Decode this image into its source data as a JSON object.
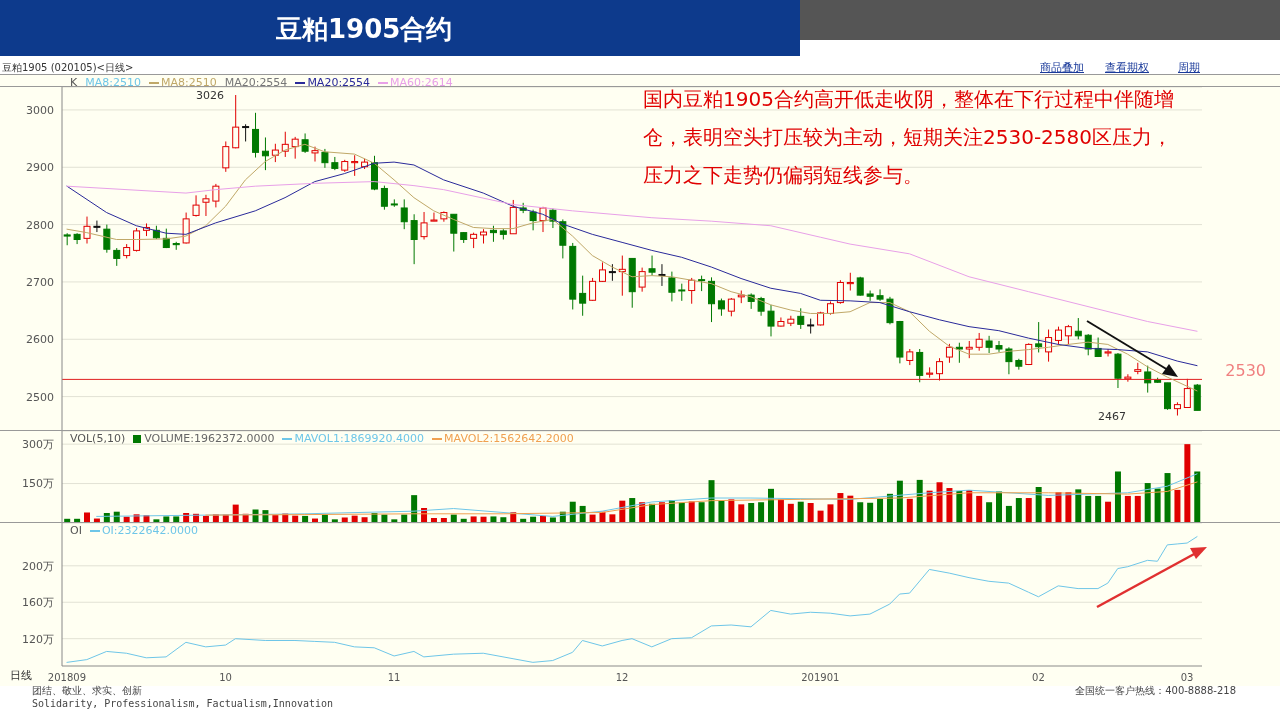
{
  "chart_data": [
    {
      "type": "candlestick",
      "title": "豆粕1905合约",
      "subtitle": "豆粕1905 (020105)<日线>",
      "legend": "top left",
      "legend_title": "K",
      "grid": "y",
      "tick_labels": "y",
      "categories": [
        "201809",
        null,
        null,
        null,
        null,
        null,
        null,
        null,
        null,
        null,
        null,
        null,
        null,
        null,
        null,
        null,
        "10",
        null,
        null,
        null,
        null,
        null,
        null,
        null,
        null,
        null,
        null,
        null,
        null,
        null,
        null,
        null,
        null,
        "11",
        null,
        null,
        null,
        null,
        null,
        null,
        null,
        null,
        null,
        null,
        null,
        null,
        null,
        null,
        null,
        null,
        null,
        null,
        null,
        null,
        null,
        null,
        "12",
        null,
        null,
        null,
        null,
        null,
        null,
        null,
        null,
        null,
        null,
        null,
        null,
        null,
        null,
        null,
        null,
        null,
        null,
        null,
        "201901",
        null,
        null,
        null,
        null,
        null,
        null,
        null,
        null,
        null,
        null,
        null,
        null,
        null,
        null,
        null,
        null,
        null,
        null,
        null,
        null,
        null,
        "02",
        null,
        null,
        null,
        null,
        null,
        null,
        null,
        null,
        null,
        null,
        null,
        null,
        null,
        null,
        "03",
        null
      ],
      "ohlc": [
        [
          2782,
          2785,
          2764,
          2780
        ],
        [
          2783,
          2785,
          2766,
          2774
        ],
        [
          2776,
          2814,
          2767,
          2797
        ],
        [
          2797,
          2807,
          2787,
          2797
        ],
        [
          2792,
          2800,
          2751,
          2757
        ],
        [
          2755,
          2759,
          2728,
          2741
        ],
        [
          2746,
          2766,
          2741,
          2760
        ],
        [
          2755,
          2794,
          2753,
          2789
        ],
        [
          2790,
          2802,
          2780,
          2795
        ],
        [
          2790,
          2798,
          2775,
          2777
        ],
        [
          2776,
          2793,
          2759,
          2760
        ],
        [
          2767,
          2770,
          2756,
          2765
        ],
        [
          2768,
          2821,
          2767,
          2810
        ],
        [
          2816,
          2851,
          2814,
          2834
        ],
        [
          2839,
          2852,
          2815,
          2845
        ],
        [
          2841,
          2871,
          2830,
          2867
        ],
        [
          2899,
          2945,
          2892,
          2936
        ],
        [
          2934,
          3026,
          2933,
          2970
        ],
        [
          2971,
          2975,
          2945,
          2971
        ],
        [
          2966,
          2995,
          2917,
          2926
        ],
        [
          2928,
          2952,
          2895,
          2920
        ],
        [
          2921,
          2941,
          2909,
          2930
        ],
        [
          2928,
          2962,
          2918,
          2940
        ],
        [
          2936,
          2953,
          2915,
          2949
        ],
        [
          2948,
          2959,
          2925,
          2928
        ],
        [
          2925,
          2936,
          2910,
          2929
        ],
        [
          2926,
          2932,
          2899,
          2908
        ],
        [
          2908,
          2918,
          2895,
          2898
        ],
        [
          2895,
          2913,
          2892,
          2910
        ],
        [
          2908,
          2921,
          2885,
          2910
        ],
        [
          2901,
          2915,
          2897,
          2909
        ],
        [
          2908,
          2920,
          2860,
          2862
        ],
        [
          2863,
          2868,
          2826,
          2832
        ],
        [
          2836,
          2844,
          2831,
          2835
        ],
        [
          2829,
          2844,
          2792,
          2805
        ],
        [
          2807,
          2818,
          2731,
          2774
        ],
        [
          2779,
          2822,
          2774,
          2803
        ],
        [
          2806,
          2821,
          2806,
          2808
        ],
        [
          2810,
          2823,
          2805,
          2821
        ],
        [
          2818,
          2818,
          2753,
          2785
        ],
        [
          2786,
          2787,
          2768,
          2774
        ],
        [
          2776,
          2786,
          2759,
          2783
        ],
        [
          2782,
          2792,
          2767,
          2787
        ],
        [
          2790,
          2798,
          2770,
          2786
        ],
        [
          2789,
          2792,
          2774,
          2783
        ],
        [
          2784,
          2843,
          2784,
          2830
        ],
        [
          2829,
          2838,
          2820,
          2825
        ],
        [
          2822,
          2826,
          2790,
          2807
        ],
        [
          2807,
          2831,
          2787,
          2829
        ],
        [
          2825,
          2828,
          2794,
          2806
        ],
        [
          2805,
          2809,
          2741,
          2764
        ],
        [
          2762,
          2768,
          2652,
          2670
        ],
        [
          2680,
          2711,
          2641,
          2663
        ],
        [
          2668,
          2707,
          2667,
          2701
        ],
        [
          2701,
          2734,
          2700,
          2721
        ],
        [
          2718,
          2731,
          2702,
          2718
        ],
        [
          2718,
          2746,
          2676,
          2722
        ],
        [
          2741,
          2741,
          2655,
          2683
        ],
        [
          2691,
          2725,
          2683,
          2718
        ],
        [
          2723,
          2746,
          2711,
          2717
        ],
        [
          2713,
          2731,
          2693,
          2713
        ],
        [
          2707,
          2718,
          2666,
          2682
        ],
        [
          2686,
          2697,
          2667,
          2685
        ],
        [
          2685,
          2707,
          2662,
          2703
        ],
        [
          2704,
          2711,
          2684,
          2703
        ],
        [
          2701,
          2708,
          2630,
          2662
        ],
        [
          2667,
          2671,
          2641,
          2653
        ],
        [
          2649,
          2672,
          2640,
          2670
        ],
        [
          2674,
          2685,
          2663,
          2677
        ],
        [
          2677,
          2680,
          2653,
          2666
        ],
        [
          2671,
          2674,
          2641,
          2649
        ],
        [
          2649,
          2660,
          2605,
          2623
        ],
        [
          2623,
          2638,
          2622,
          2631
        ],
        [
          2628,
          2641,
          2623,
          2635
        ],
        [
          2640,
          2654,
          2618,
          2626
        ],
        [
          2625,
          2636,
          2610,
          2625
        ],
        [
          2625,
          2648,
          2624,
          2646
        ],
        [
          2645,
          2666,
          2643,
          2662
        ],
        [
          2664,
          2703,
          2662,
          2699
        ],
        [
          2697,
          2716,
          2685,
          2699
        ],
        [
          2707,
          2709,
          2676,
          2677
        ],
        [
          2679,
          2685,
          2667,
          2675
        ],
        [
          2676,
          2687,
          2667,
          2670
        ],
        [
          2670,
          2674,
          2626,
          2629
        ],
        [
          2631,
          2632,
          2558,
          2569
        ],
        [
          2563,
          2583,
          2555,
          2578
        ],
        [
          2577,
          2583,
          2525,
          2537
        ],
        [
          2539,
          2551,
          2533,
          2541
        ],
        [
          2540,
          2567,
          2528,
          2561
        ],
        [
          2569,
          2592,
          2559,
          2586
        ],
        [
          2586,
          2594,
          2559,
          2583
        ],
        [
          2583,
          2597,
          2567,
          2586
        ],
        [
          2586,
          2611,
          2580,
          2600
        ],
        [
          2597,
          2606,
          2576,
          2586
        ],
        [
          2589,
          2597,
          2578,
          2583
        ],
        [
          2583,
          2586,
          2539,
          2561
        ],
        [
          2563,
          2566,
          2547,
          2553
        ],
        [
          2556,
          2593,
          2555,
          2591
        ],
        [
          2592,
          2630,
          2577,
          2587
        ],
        [
          2578,
          2617,
          2561,
          2603
        ],
        [
          2598,
          2622,
          2591,
          2616
        ],
        [
          2606,
          2625,
          2591,
          2622
        ],
        [
          2614,
          2637,
          2600,
          2606
        ],
        [
          2607,
          2609,
          2572,
          2583
        ],
        [
          2584,
          2603,
          2569,
          2570
        ],
        [
          2576,
          2583,
          2570,
          2578
        ],
        [
          2574,
          2576,
          2515,
          2532
        ],
        [
          2531,
          2539,
          2526,
          2534
        ],
        [
          2544,
          2559,
          2539,
          2547
        ],
        [
          2543,
          2554,
          2507,
          2524
        ],
        [
          2529,
          2533,
          2524,
          2525
        ],
        [
          2524,
          2524,
          2477,
          2479
        ],
        [
          2479,
          2490,
          2467,
          2486
        ],
        [
          2481,
          2531,
          2481,
          2514
        ],
        [
          2520,
          2522,
          2476,
          2476
        ]
      ],
      "series": [
        {
          "type": "line",
          "name": "MA8:2510",
          "color": "#c0a868",
          "values": [
            2792,
            null,
            2786,
            null,
            null,
            2774,
            null,
            2774,
            null,
            null,
            2775,
            null,
            2780,
            null,
            2798,
            null,
            2832,
            null,
            2878,
            null,
            2910,
            null,
            2930,
            null,
            2940,
            null,
            2927,
            null,
            null,
            2923,
            null,
            2907,
            null,
            2878,
            null,
            2847,
            null,
            2824,
            null,
            2809,
            null,
            2795,
            null,
            2793,
            null,
            2793,
            null,
            2803,
            null,
            2809,
            null,
            2780,
            null,
            2746,
            null,
            2726,
            null,
            2709,
            null,
            2711,
            null,
            2709,
            null,
            2703,
            null,
            2697,
            null,
            2683,
            null,
            2674,
            null,
            2660,
            null,
            2651,
            null,
            2645,
            null,
            2645,
            null,
            2648,
            null,
            2664,
            null,
            2664,
            null,
            2648,
            null,
            2614,
            null,
            2588,
            null,
            2574,
            null,
            2574,
            null,
            2579,
            null,
            2582,
            null,
            2586,
            null,
            2591,
            null,
            2595,
            null,
            2591,
            null,
            2574,
            null,
            2552,
            null,
            2534,
            null,
            2518,
            2510
          ]
        },
        {
          "type": "line",
          "name": "MA20:2554",
          "color": "#2a2a9a",
          "values": [
            2867,
            null,
            null,
            null,
            2821,
            null,
            null,
            2798,
            null,
            null,
            2785,
            null,
            2783,
            null,
            null,
            2803,
            null,
            null,
            null,
            2824,
            null,
            null,
            2847,
            null,
            null,
            2875,
            null,
            null,
            2889,
            null,
            null,
            2907,
            null,
            2909,
            null,
            2904,
            null,
            null,
            2878,
            null,
            null,
            null,
            2855,
            null,
            null,
            2832,
            null,
            null,
            2818,
            null,
            2801,
            null,
            null,
            2783,
            null,
            null,
            2769,
            null,
            null,
            2755,
            null,
            null,
            2743,
            null,
            null,
            2726,
            null,
            null,
            2706,
            null,
            null,
            2689,
            null,
            null,
            2680,
            null,
            2668,
            null,
            null,
            2667,
            null,
            null,
            2664,
            null,
            null,
            2648,
            null,
            null,
            2634,
            null,
            null,
            2622,
            null,
            null,
            2615,
            null,
            null,
            2602,
            null,
            null,
            2591,
            null,
            null,
            2584,
            null,
            null,
            2582,
            null,
            null,
            2578,
            null,
            null,
            2562,
            null,
            2554
          ]
        },
        {
          "type": "line",
          "name": "MA60:2614",
          "color": "#e8a0e8",
          "values": [
            2867,
            null,
            null,
            null,
            null,
            null,
            null,
            null,
            null,
            null,
            null,
            null,
            2855,
            null,
            null,
            2861,
            null,
            null,
            null,
            2867,
            null,
            null,
            null,
            null,
            null,
            2872,
            null,
            null,
            null,
            null,
            null,
            2875,
            null,
            null,
            null,
            2868,
            null,
            null,
            2861,
            null,
            null,
            null,
            null,
            null,
            null,
            2835,
            null,
            null,
            null,
            null,
            null,
            2824,
            null,
            null,
            null,
            null,
            null,
            null,
            null,
            2812,
            null,
            null,
            null,
            null,
            null,
            2806,
            null,
            null,
            null,
            null,
            null,
            2798,
            null,
            null,
            null,
            null,
            2778,
            null,
            null,
            2766,
            null,
            null,
            null,
            null,
            null,
            2749,
            null,
            null,
            null,
            null,
            null,
            2709,
            null,
            null,
            null,
            null,
            null,
            2683,
            null,
            null,
            null,
            null,
            null,
            2657,
            null,
            null,
            null,
            null,
            null,
            2631,
            null,
            null,
            null,
            null,
            2614
          ]
        }
      ],
      "ylim": [
        2440,
        3040
      ],
      "yticks": [
        2500,
        2600,
        2700,
        2800,
        2900,
        3000
      ],
      "ref_lines": [
        {
          "axis": "y",
          "value": 2530,
          "label": "2530",
          "color": "#e02020"
        }
      ],
      "annotations": [
        "国内豆粕1905合约高开低走收阴，整体在下行过程中伴随增仓，表明空头打压较为主动，短期关注2530-2580区压力，压力之下走势仍偏弱短线参与。",
        "商品叠加",
        "查看期权",
        "周期",
        "MA8:2510",
        "MA20:2554",
        "3026",
        "2467"
      ]
    },
    {
      "type": "bar",
      "legend": "top left",
      "legend_title": "VOL(5,10)",
      "grid": "y",
      "tick_labels": "y",
      "categories": [
        "201809",
        null,
        null,
        null,
        null,
        null,
        null,
        null,
        null,
        null,
        null,
        null,
        null,
        null,
        null,
        null,
        "10",
        null,
        null,
        null,
        null,
        null,
        null,
        null,
        null,
        null,
        null,
        null,
        null,
        null,
        null,
        null,
        null,
        "11",
        null,
        null,
        null,
        null,
        null,
        null,
        null,
        null,
        null,
        null,
        null,
        null,
        null,
        null,
        null,
        null,
        null,
        null,
        null,
        null,
        null,
        null,
        "12",
        null,
        null,
        null,
        null,
        null,
        null,
        null,
        null,
        null,
        null,
        null,
        null,
        null,
        null,
        null,
        null,
        null,
        null,
        null,
        "201901",
        null,
        null,
        null,
        null,
        null,
        null,
        null,
        null,
        null,
        null,
        null,
        null,
        null,
        null,
        null,
        null,
        null,
        null,
        null,
        null,
        null,
        "02",
        null,
        null,
        null,
        null,
        null,
        null,
        null,
        null,
        null,
        null,
        null,
        null,
        null,
        null,
        "03",
        null
      ],
      "series": [
        {
          "name": "VOLUME:1962372.0000",
          "values": [
            16,
            16,
            40,
            17,
            38,
            43,
            24,
            33,
            30,
            14,
            25,
            25,
            38,
            35,
            27,
            33,
            32,
            70,
            35,
            51,
            49,
            30,
            36,
            28,
            27,
            17,
            33,
            14,
            21,
            28,
            22,
            38,
            32,
            14,
            32,
            106,
            57,
            19,
            19,
            32,
            16,
            25,
            24,
            25,
            22,
            41,
            16,
            24,
            27,
            21,
            43,
            81,
            65,
            32,
            43,
            33,
            85,
            95,
            79,
            73,
            79,
            87,
            77,
            82,
            79,
            163,
            85,
            90,
            71,
            76,
            79,
            130,
            90,
            73,
            81,
            76,
            47,
            71,
            114,
            104,
            79,
            77,
            92,
            111,
            161,
            92,
            164,
            123,
            155,
            133,
            122,
            125,
            103,
            79,
            120,
            65,
            95,
            95,
            137,
            95,
            117,
            117,
            128,
            103,
            103,
            81,
            196,
            103,
            103,
            152,
            131,
            190,
            126,
            300,
            196
          ],
          "colors": [
            "#007800",
            "#007800",
            "#e00000",
            "#e00000",
            "#007800",
            "#007800",
            "#e00000",
            "#e00000",
            "#e00000",
            "#007800",
            "#007800",
            "#007800",
            "#e00000",
            "#e00000",
            "#e00000",
            "#e00000",
            "#e00000",
            "#e00000",
            "#e00000",
            "#007800",
            "#007800",
            "#e00000",
            "#e00000",
            "#e00000",
            "#007800",
            "#e00000",
            "#007800",
            "#007800",
            "#e00000",
            "#e00000",
            "#e00000",
            "#007800",
            "#007800",
            "#007800",
            "#007800",
            "#007800",
            "#e00000",
            "#e00000",
            "#e00000",
            "#007800",
            "#007800",
            "#e00000",
            "#e00000",
            "#007800",
            "#007800",
            "#e00000",
            "#007800",
            "#007800",
            "#e00000",
            "#007800",
            "#007800",
            "#007800",
            "#007800",
            "#e00000",
            "#e00000",
            "#e00000",
            "#e00000",
            "#007800",
            "#e00000",
            "#007800",
            "#e00000",
            "#007800",
            "#007800",
            "#e00000",
            "#007800",
            "#007800",
            "#007800",
            "#e00000",
            "#e00000",
            "#007800",
            "#007800",
            "#007800",
            "#e00000",
            "#e00000",
            "#007800",
            "#e00000",
            "#e00000",
            "#e00000",
            "#e00000",
            "#e00000",
            "#007800",
            "#007800",
            "#007800",
            "#007800",
            "#007800",
            "#e00000",
            "#007800",
            "#e00000",
            "#e00000",
            "#e00000",
            "#007800",
            "#e00000",
            "#e00000",
            "#007800",
            "#007800",
            "#007800",
            "#007800",
            "#e00000",
            "#007800",
            "#e00000",
            "#e00000",
            "#e00000",
            "#007800",
            "#007800",
            "#007800",
            "#e00000",
            "#007800",
            "#e00000",
            "#e00000",
            "#007800",
            "#007800",
            "#007800",
            "#e00000",
            "#e00000",
            "#007800"
          ]
        },
        {
          "type": "line",
          "name": "MAVOL1:1869920.4000",
          "color": "#6ec6e8",
          "values": [
            null,
            null,
            null,
            25,
            null,
            null,
            null,
            null,
            null,
            null,
            null,
            null,
            null,
            null,
            30,
            null,
            null,
            null,
            null,
            null,
            null,
            null,
            null,
            null,
            35,
            null,
            null,
            null,
            null,
            null,
            null,
            null,
            null,
            null,
            null,
            45,
            null,
            null,
            null,
            55,
            null,
            null,
            null,
            null,
            null,
            null,
            null,
            null,
            null,
            25,
            null,
            null,
            null,
            null,
            45,
            null,
            null,
            null,
            null,
            80,
            null,
            null,
            null,
            null,
            null,
            95,
            null,
            null,
            null,
            95,
            null,
            null,
            null,
            null,
            null,
            null,
            null,
            null,
            null,
            90,
            null,
            null,
            null,
            null,
            null,
            null,
            null,
            115,
            null,
            null,
            null,
            125,
            null,
            null,
            null,
            null,
            null,
            null,
            null,
            105,
            null,
            null,
            null,
            null,
            null,
            null,
            null,
            115,
            null,
            null,
            null,
            140,
            null,
            null,
            187
          ]
        },
        {
          "type": "line",
          "name": "MAVOL2:1562642.2000",
          "color": "#f0a050",
          "values": [
            null,
            null,
            null,
            null,
            null,
            null,
            null,
            null,
            null,
            null,
            null,
            null,
            null,
            null,
            30,
            null,
            null,
            null,
            null,
            null,
            null,
            null,
            null,
            null,
            32,
            null,
            null,
            null,
            null,
            null,
            null,
            null,
            null,
            null,
            null,
            35,
            null,
            null,
            null,
            null,
            null,
            null,
            null,
            null,
            35,
            null,
            null,
            null,
            null,
            null,
            null,
            null,
            null,
            null,
            40,
            null,
            null,
            null,
            null,
            70,
            null,
            null,
            null,
            null,
            null,
            85,
            null,
            null,
            null,
            null,
            null,
            null,
            null,
            null,
            90,
            null,
            null,
            null,
            null,
            null,
            null,
            null,
            null,
            null,
            95,
            null,
            null,
            null,
            null,
            null,
            null,
            115,
            null,
            null,
            null,
            null,
            null,
            null,
            null,
            115,
            null,
            null,
            null,
            null,
            null,
            null,
            null,
            110,
            null,
            null,
            null,
            120,
            null,
            null,
            156
          ]
        }
      ],
      "ylim": [
        0,
        350
      ],
      "yticks": [
        {
          "value": 150,
          "label": "150万"
        },
        {
          "value": 300,
          "label": "300万"
        }
      ]
    },
    {
      "type": "line",
      "legend": "top left",
      "legend_title": "OI",
      "grid": "y",
      "xlabel": "日线",
      "categories": [
        "201809",
        null,
        null,
        null,
        null,
        null,
        null,
        null,
        null,
        null,
        null,
        null,
        null,
        null,
        null,
        null,
        "10",
        null,
        null,
        null,
        null,
        null,
        null,
        null,
        null,
        null,
        null,
        null,
        null,
        null,
        null,
        null,
        null,
        "11",
        null,
        null,
        null,
        null,
        null,
        null,
        null,
        null,
        null,
        null,
        null,
        null,
        null,
        null,
        null,
        null,
        null,
        null,
        null,
        null,
        null,
        null,
        "12",
        null,
        null,
        null,
        null,
        null,
        null,
        null,
        null,
        null,
        null,
        null,
        null,
        null,
        null,
        null,
        null,
        null,
        null,
        null,
        "201901",
        null,
        null,
        null,
        null,
        null,
        null,
        null,
        null,
        null,
        null,
        null,
        null,
        null,
        null,
        null,
        null,
        null,
        null,
        null,
        null,
        null,
        "02",
        null,
        null,
        null,
        null,
        null,
        null,
        null,
        null,
        null,
        null,
        null,
        null,
        null,
        null,
        "03",
        null
      ],
      "series": [
        {
          "name": "OI:2322642.0000",
          "color": "#6ec6e8",
          "values": [
            94,
            null,
            97,
            null,
            106,
            null,
            104,
            null,
            99,
            null,
            100,
            null,
            116,
            null,
            111,
            null,
            113,
            120,
            null,
            null,
            118,
            null,
            null,
            118,
            null,
            117,
            null,
            116,
            null,
            111,
            null,
            110,
            null,
            101,
            null,
            106,
            100,
            null,
            null,
            103,
            null,
            null,
            104,
            null,
            null,
            98,
            null,
            94,
            null,
            96,
            null,
            105,
            118,
            null,
            112,
            null,
            118,
            120,
            null,
            111,
            null,
            120,
            null,
            121,
            null,
            134,
            null,
            135,
            null,
            133,
            null,
            151,
            null,
            147,
            null,
            149,
            null,
            148,
            null,
            145,
            null,
            147,
            null,
            158,
            169,
            170,
            null,
            196,
            null,
            192,
            null,
            187,
            null,
            183,
            null,
            181,
            null,
            171,
            166,
            null,
            178,
            null,
            175,
            null,
            175,
            181,
            197,
            199,
            null,
            206,
            205,
            223,
            224,
            225,
            232
          ]
        }
      ],
      "ylim": [
        90,
        247
      ],
      "yticks": [
        {
          "value": 120,
          "label": "120万"
        },
        {
          "value": 160,
          "label": "160万"
        },
        {
          "value": 200,
          "label": "200万"
        }
      ],
      "annotations": [
        "团结、敬业、求实、创新",
        "Solidarity, Professionalism, Factualism,Innovation",
        "全国统一客户热线：400-8888-218"
      ]
    }
  ]
}
